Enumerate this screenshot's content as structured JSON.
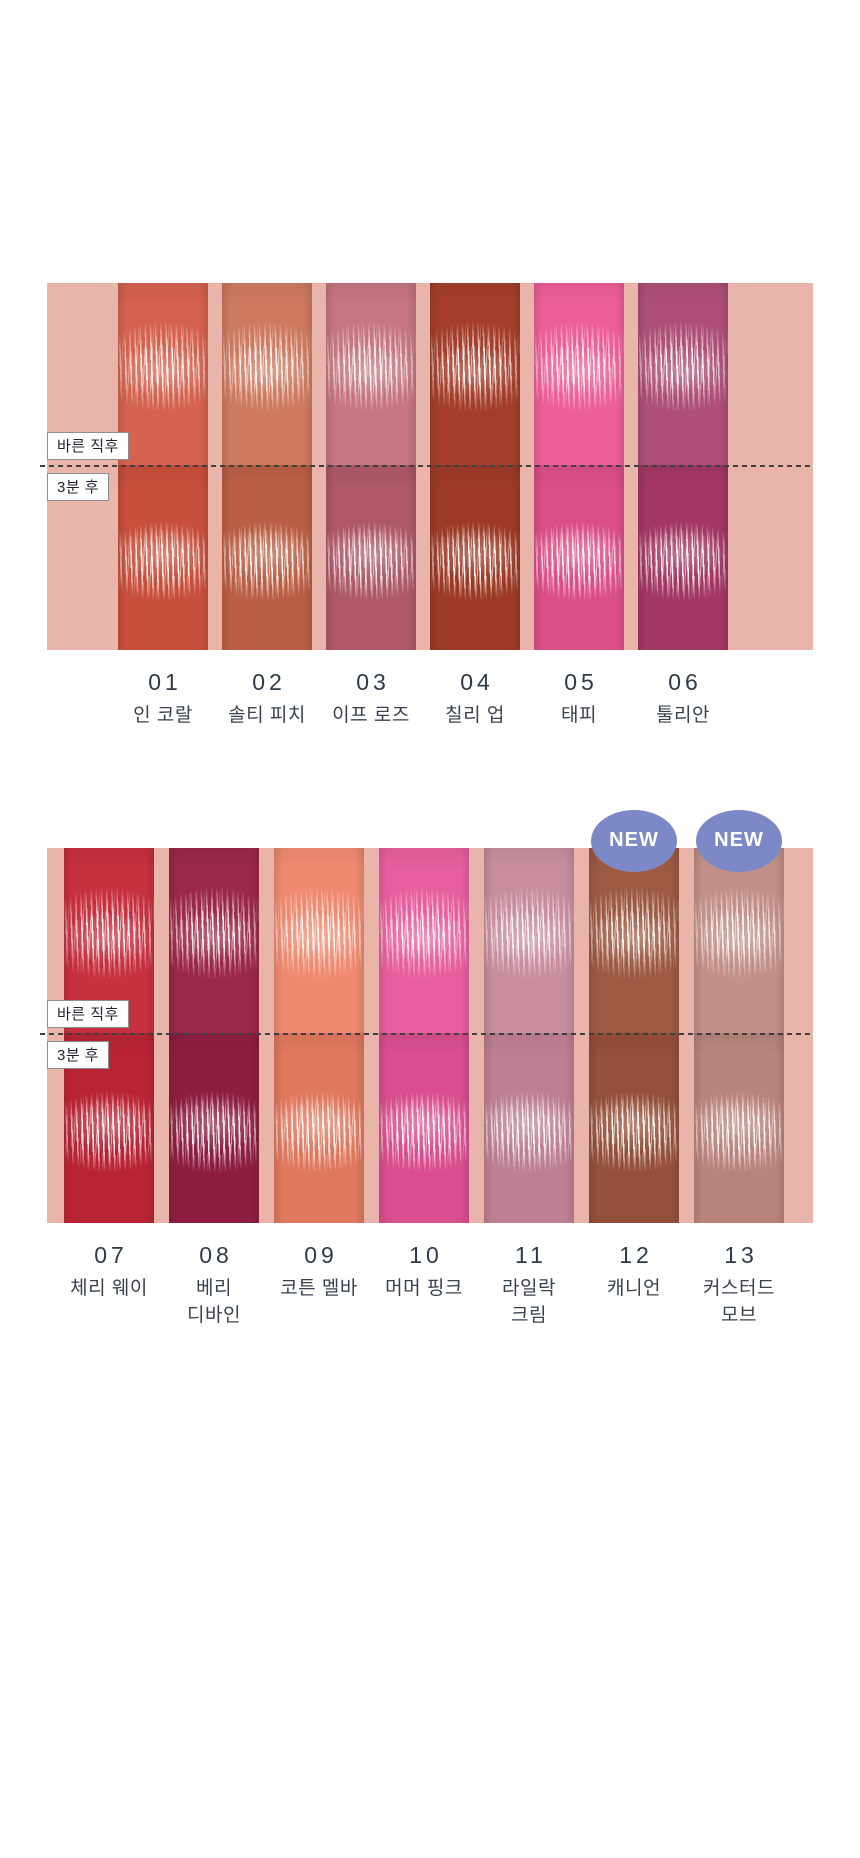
{
  "labels": {
    "immediate": "바른 직후",
    "after_3min": "3분 후",
    "new": "NEW"
  },
  "colors": {
    "skin": "#e9b5ab",
    "badge": "#7d88c6",
    "text": "#343d4b",
    "divider": "#3f3f3f"
  },
  "sections": [
    {
      "name": "shades-01-06",
      "swatches": [
        {
          "number": "01",
          "name": "인 코랄",
          "color_immediate": "#d4624e",
          "color_after": "#c84f3c",
          "is_new": false
        },
        {
          "number": "02",
          "name": "솔티 피치",
          "color_immediate": "#cd7a5f",
          "color_after": "#ba5f45",
          "is_new": false
        },
        {
          "number": "03",
          "name": "이프 로즈",
          "color_immediate": "#c57680",
          "color_after": "#ae5868",
          "is_new": false
        },
        {
          "number": "04",
          "name": "칠리 업",
          "color_immediate": "#a43e2a",
          "color_after": "#9c3a26",
          "is_new": false
        },
        {
          "number": "05",
          "name": "태피",
          "color_immediate": "#ec5f97",
          "color_after": "#db4f88",
          "is_new": false
        },
        {
          "number": "06",
          "name": "툴리안",
          "color_immediate": "#ad4f76",
          "color_after": "#a23763",
          "is_new": false
        }
      ]
    },
    {
      "name": "shades-07-13",
      "swatches": [
        {
          "number": "07",
          "name": "체리 웨이",
          "color_immediate": "#c6303f",
          "color_after": "#b92435",
          "is_new": false
        },
        {
          "number": "08",
          "name": "베리\n디바인",
          "color_immediate": "#9b2848",
          "color_after": "#8e1e40",
          "is_new": false
        },
        {
          "number": "09",
          "name": "코튼 멜바",
          "color_immediate": "#ef8a70",
          "color_after": "#e0785e",
          "is_new": false
        },
        {
          "number": "10",
          "name": "머머 핑크",
          "color_immediate": "#e75f9e",
          "color_after": "#d94e8f",
          "is_new": false
        },
        {
          "number": "11",
          "name": "라일락\n크림",
          "color_immediate": "#c88e9d",
          "color_after": "#bd8093",
          "is_new": false
        },
        {
          "number": "12",
          "name": "캐니언",
          "color_immediate": "#9d5a43",
          "color_after": "#94503a",
          "is_new": true
        },
        {
          "number": "13",
          "name": "커스터드\n모브",
          "color_immediate": "#c29088",
          "color_after": "#b9847c",
          "is_new": true
        }
      ]
    }
  ]
}
